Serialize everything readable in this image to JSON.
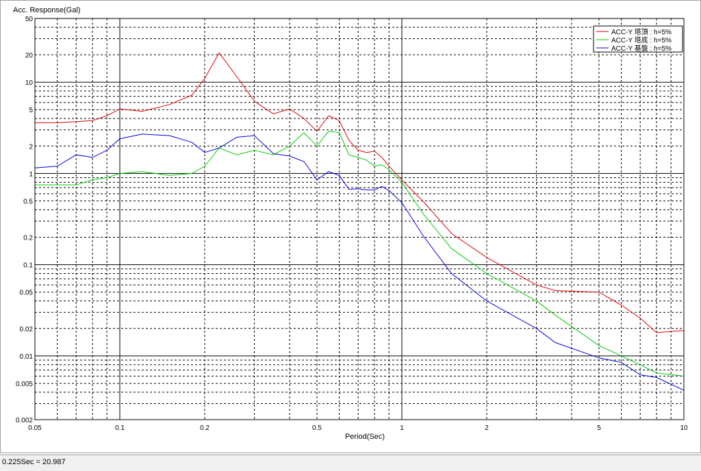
{
  "chart_data": {
    "type": "line",
    "xlabel": "Period(Sec)",
    "ylabel": "Acc. Response(Gal)",
    "x_scale": "log",
    "y_scale": "log",
    "xlim": [
      0.05,
      10
    ],
    "ylim": [
      0.002,
      50
    ],
    "x_ticks": [
      "0.05",
      "0.1",
      "0.2",
      "0.5",
      "1",
      "2",
      "5",
      "10"
    ],
    "y_ticks": [
      "0.002",
      "0.005",
      "0.01",
      "0.02",
      "0.05",
      "0.1",
      "0.2",
      "0.5",
      "1",
      "2",
      "5",
      "10",
      "20",
      "50"
    ],
    "grid": true,
    "legend_position": "top-right",
    "series": [
      {
        "name": "ACC-Y 塔頂 : h=5%",
        "color": "#dd0000",
        "x": [
          0.05,
          0.06,
          0.07,
          0.08,
          0.09,
          0.1,
          0.12,
          0.15,
          0.18,
          0.2,
          0.225,
          0.26,
          0.3,
          0.35,
          0.4,
          0.45,
          0.5,
          0.55,
          0.6,
          0.65,
          0.7,
          0.75,
          0.8,
          0.85,
          0.9,
          1.0,
          1.2,
          1.5,
          2.0,
          3.0,
          3.5,
          5.0,
          6.0,
          7.0,
          8.0,
          10.0
        ],
        "y": [
          3.6,
          3.6,
          3.7,
          3.8,
          4.3,
          5.1,
          4.8,
          5.7,
          7.2,
          11.0,
          20.987,
          11.5,
          6.2,
          4.5,
          5.1,
          4.0,
          2.9,
          4.3,
          3.8,
          2.3,
          1.8,
          1.7,
          1.75,
          1.5,
          1.2,
          0.85,
          0.48,
          0.22,
          0.12,
          0.06,
          0.052,
          0.05,
          0.036,
          0.026,
          0.018,
          0.019
        ]
      },
      {
        "name": "ACC-Y 塔底 : h=5%",
        "color": "#00cc00",
        "x": [
          0.05,
          0.06,
          0.07,
          0.08,
          0.09,
          0.1,
          0.12,
          0.15,
          0.18,
          0.2,
          0.225,
          0.26,
          0.3,
          0.35,
          0.4,
          0.45,
          0.5,
          0.55,
          0.6,
          0.65,
          0.7,
          0.75,
          0.8,
          0.85,
          0.9,
          1.0,
          1.2,
          1.5,
          2.0,
          3.0,
          3.5,
          5.0,
          6.0,
          7.0,
          8.0,
          10.0
        ],
        "y": [
          0.75,
          0.75,
          0.75,
          0.85,
          0.9,
          1.0,
          1.05,
          0.95,
          1.0,
          1.2,
          1.9,
          1.6,
          1.8,
          1.6,
          2.0,
          2.8,
          2.0,
          2.9,
          2.8,
          1.6,
          1.5,
          1.4,
          1.2,
          1.25,
          1.1,
          0.8,
          0.35,
          0.15,
          0.08,
          0.04,
          0.028,
          0.013,
          0.01,
          0.008,
          0.0065,
          0.006
        ]
      },
      {
        "name": "ACC-Y 基盤 : h=5%",
        "color": "#0000dd",
        "x": [
          0.05,
          0.06,
          0.07,
          0.08,
          0.09,
          0.1,
          0.12,
          0.15,
          0.18,
          0.2,
          0.225,
          0.26,
          0.3,
          0.35,
          0.4,
          0.45,
          0.5,
          0.55,
          0.6,
          0.65,
          0.7,
          0.75,
          0.8,
          0.85,
          0.9,
          1.0,
          1.2,
          1.5,
          2.0,
          3.0,
          3.5,
          5.0,
          6.0,
          7.0,
          8.0,
          10.0
        ],
        "y": [
          1.15,
          1.2,
          1.6,
          1.5,
          1.8,
          2.4,
          2.7,
          2.6,
          2.2,
          1.7,
          1.9,
          2.5,
          2.6,
          1.65,
          1.55,
          1.35,
          0.85,
          1.05,
          0.95,
          0.67,
          0.68,
          0.66,
          0.66,
          0.72,
          0.65,
          0.48,
          0.2,
          0.08,
          0.04,
          0.02,
          0.014,
          0.0095,
          0.0085,
          0.0062,
          0.0058,
          0.0042
        ]
      }
    ]
  },
  "status_bar": {
    "text": "0.225Sec = 20.987"
  }
}
